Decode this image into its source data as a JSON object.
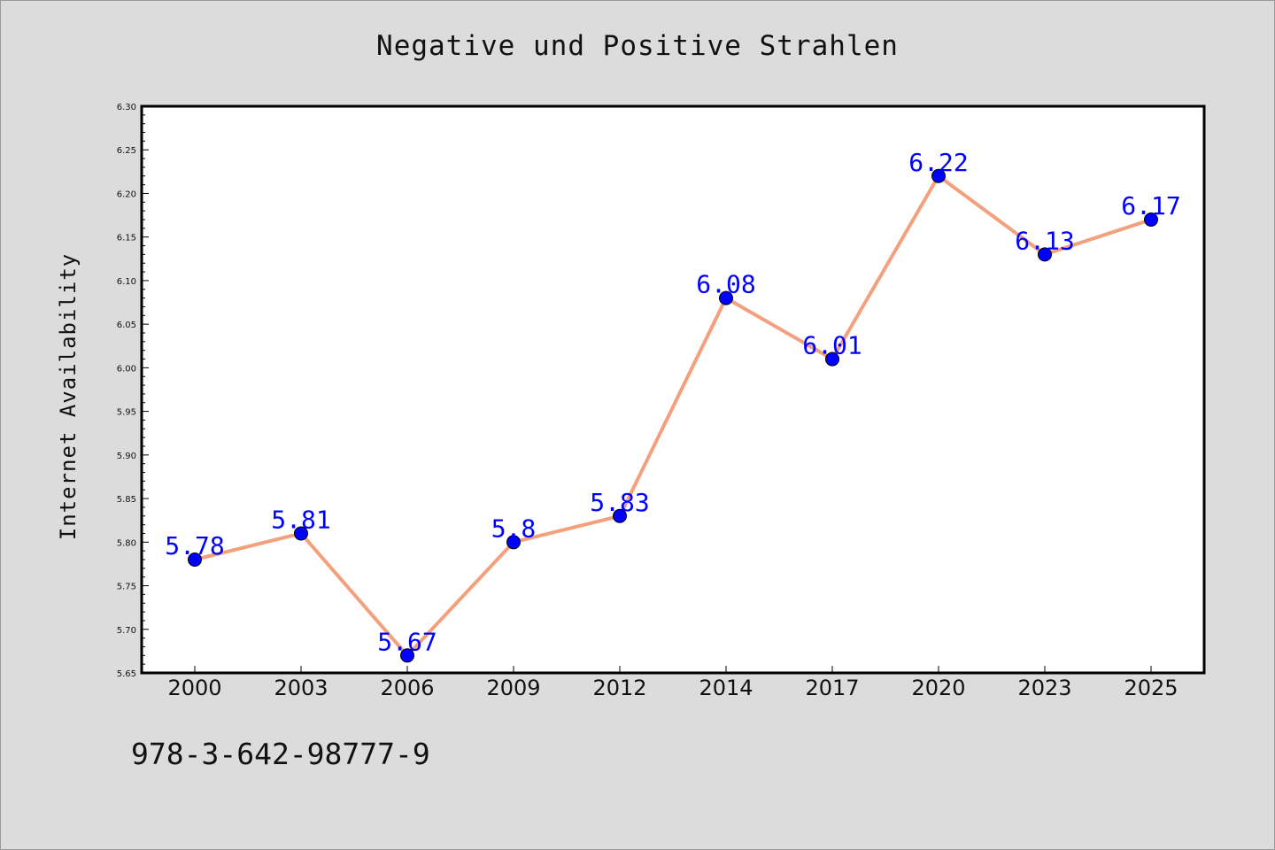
{
  "chart_data": {
    "type": "line",
    "title": "Negative und Positive Strahlen",
    "xlabel": "",
    "ylabel": "Internet Availability",
    "categories": [
      "2000",
      "2003",
      "2006",
      "2009",
      "2012",
      "2014",
      "2017",
      "2020",
      "2023",
      "2025"
    ],
    "series": [
      {
        "values": [
          5.78,
          5.81,
          5.67,
          5.8,
          5.83,
          6.08,
          6.01,
          6.22,
          6.13,
          6.17
        ]
      }
    ],
    "data_labels": [
      "5.78",
      "5.81",
      "5.67",
      "5.8",
      "5.83",
      "6.08",
      "6.01",
      "6.22",
      "6.13",
      "6.17"
    ],
    "ylim": [
      5.65,
      6.3
    ],
    "yticks": [
      "5.65",
      "5.70",
      "5.75",
      "5.80",
      "5.85",
      "5.90",
      "5.95",
      "6.00",
      "6.05",
      "6.10",
      "6.15",
      "6.20",
      "6.25",
      "6.30"
    ],
    "grid": false,
    "line_color": "#f4a07c",
    "marker_color": "#0000ff",
    "label_color": "#0000ff",
    "background": "#dcdcdc",
    "plot_background": "#ffffff"
  },
  "footer": {
    "code": "978-3-642-98777-9"
  }
}
